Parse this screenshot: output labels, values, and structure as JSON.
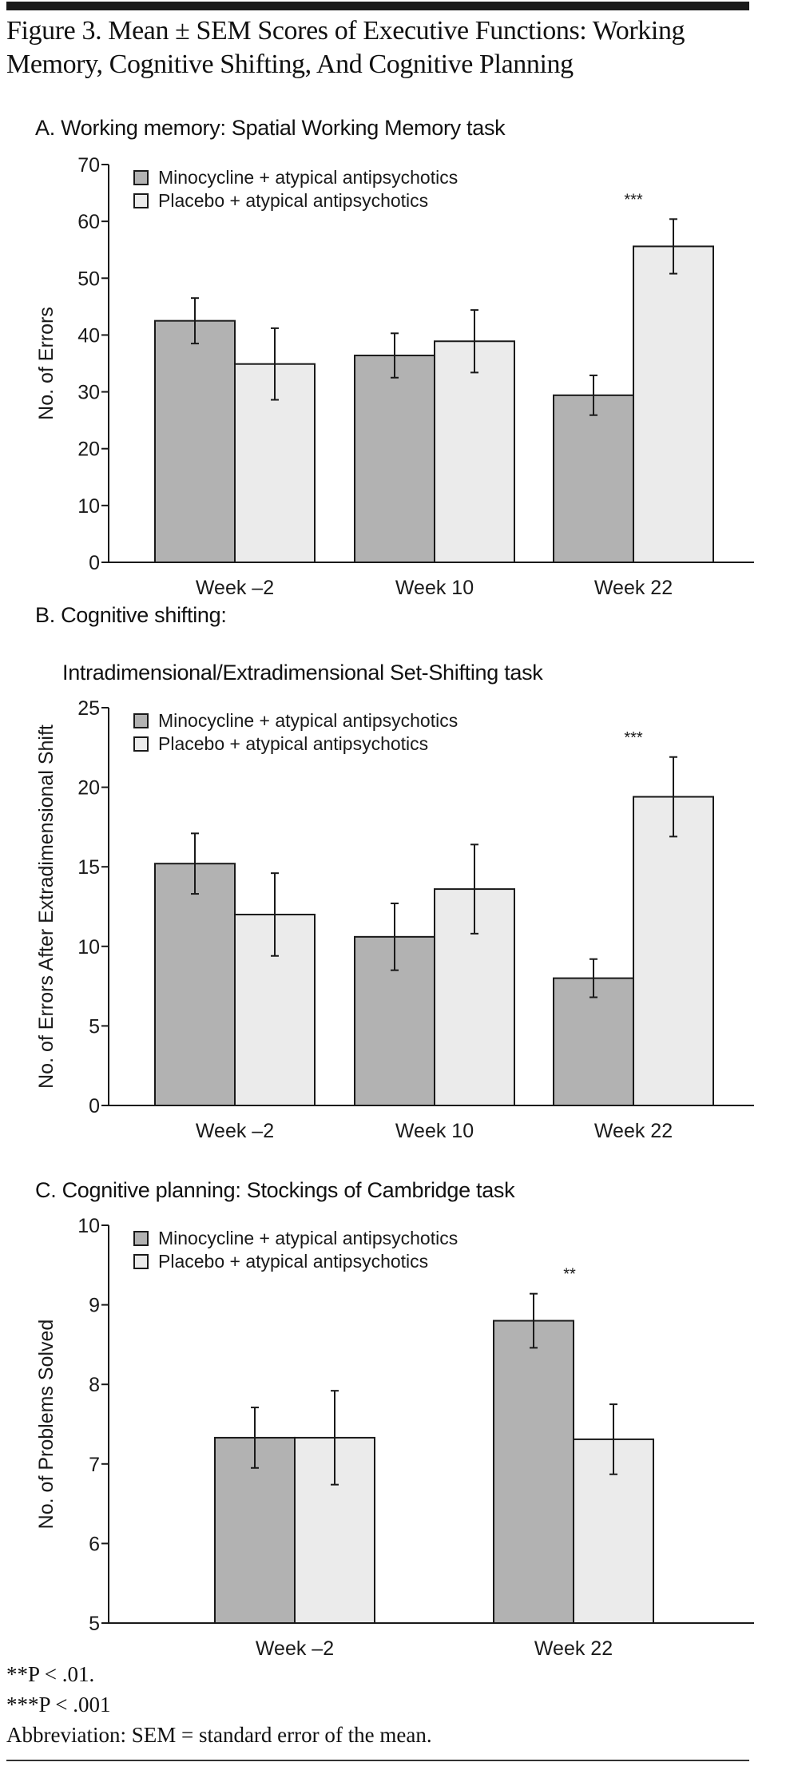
{
  "figure": {
    "title_line1": "Figure 3. Mean ± SEM Scores of Executive Functions: Working",
    "title_line2": "Memory, Cognitive Shifting, And Cognitive Planning"
  },
  "colors": {
    "minocycline": "#b2b2b2",
    "placebo": "#ebebeb",
    "stroke": "#1a1a1a"
  },
  "chart_data": [
    {
      "type": "bar",
      "panel": "A",
      "title": "A. Working memory: Spatial Working Memory task",
      "title_line2": "",
      "xlabel": "",
      "ylabel": "No. of Errors",
      "ylim": [
        0,
        70
      ],
      "yticks": [
        0,
        10,
        20,
        30,
        40,
        50,
        60,
        70
      ],
      "grid": false,
      "legend_position": "top-left",
      "categories": [
        "Week –2",
        "Week 10",
        "Week 22"
      ],
      "series": [
        {
          "name": "Minocycline + atypical antipsychotics",
          "values": [
            42.5,
            36.4,
            29.4
          ],
          "sem": [
            4.0,
            3.9,
            3.5
          ]
        },
        {
          "name": "Placebo + atypical antipsychotics",
          "values": [
            34.9,
            38.9,
            55.6
          ],
          "sem": [
            6.3,
            5.5,
            4.8
          ]
        }
      ],
      "annotations": [
        {
          "category": "Week 22",
          "text": "***"
        }
      ]
    },
    {
      "type": "bar",
      "panel": "B",
      "title": "B. Cognitive shifting:",
      "title_line2": "Intradimensional/Extradimensional Set-Shifting task",
      "xlabel": "",
      "ylabel": "No. of Errors After Extradimensional Shift",
      "ylim": [
        0,
        25
      ],
      "yticks": [
        0,
        5,
        10,
        15,
        20,
        25
      ],
      "grid": false,
      "legend_position": "top-left",
      "categories": [
        "Week –2",
        "Week 10",
        "Week 22"
      ],
      "series": [
        {
          "name": "Minocycline + atypical antipsychotics",
          "values": [
            15.2,
            10.6,
            8.0
          ],
          "sem": [
            1.9,
            2.1,
            1.2
          ]
        },
        {
          "name": "Placebo + atypical antipsychotics",
          "values": [
            12.0,
            13.6,
            19.4
          ],
          "sem": [
            2.6,
            2.8,
            2.5
          ]
        }
      ],
      "annotations": [
        {
          "category": "Week 22",
          "text": "***"
        }
      ]
    },
    {
      "type": "bar",
      "panel": "C",
      "title": "C. Cognitive planning: Stockings of Cambridge task",
      "title_line2": "",
      "xlabel": "",
      "ylabel": "No. of Problems Solved",
      "ylim": [
        5,
        10
      ],
      "yticks": [
        5,
        6,
        7,
        8,
        9,
        10
      ],
      "grid": false,
      "legend_position": "top-left",
      "categories": [
        "Week –2",
        "Week 22"
      ],
      "series": [
        {
          "name": "Minocycline + atypical antipsychotics",
          "values": [
            7.33,
            8.8
          ],
          "sem": [
            0.38,
            0.34
          ]
        },
        {
          "name": "Placebo + atypical antipsychotics",
          "values": [
            7.33,
            7.31
          ],
          "sem": [
            0.59,
            0.44
          ]
        }
      ],
      "annotations": [
        {
          "category": "Week 22",
          "text": "**"
        }
      ]
    }
  ],
  "footnotes": {
    "f1": "**P < .01.",
    "f2": "***P < .001",
    "f3": "Abbreviation: SEM = standard error of the mean."
  }
}
